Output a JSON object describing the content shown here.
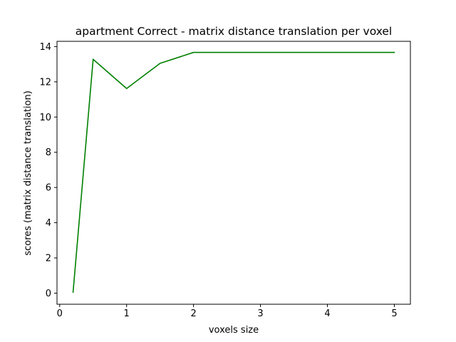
{
  "chart_data": {
    "type": "line",
    "title": "apartment Correct - matrix distance translation per voxel",
    "xlabel": "voxels size",
    "ylabel": "scores (matrix distance translation)",
    "xlim": [
      -0.04,
      5.24
    ],
    "ylim": [
      -0.63,
      14.3
    ],
    "xticks": [
      0,
      1,
      2,
      3,
      4,
      5
    ],
    "yticks": [
      0,
      2,
      4,
      6,
      8,
      10,
      12,
      14
    ],
    "grid": false,
    "legend": "none",
    "series": [
      {
        "color": "#008000",
        "x": [
          0.2,
          0.5,
          1.0,
          1.5,
          2.0,
          2.5,
          3.0,
          3.5,
          4.0,
          4.5,
          5.0
        ],
        "y": [
          0.05,
          13.28,
          11.62,
          13.05,
          13.67,
          13.67,
          13.67,
          13.67,
          13.67,
          13.67,
          13.67
        ]
      }
    ]
  }
}
